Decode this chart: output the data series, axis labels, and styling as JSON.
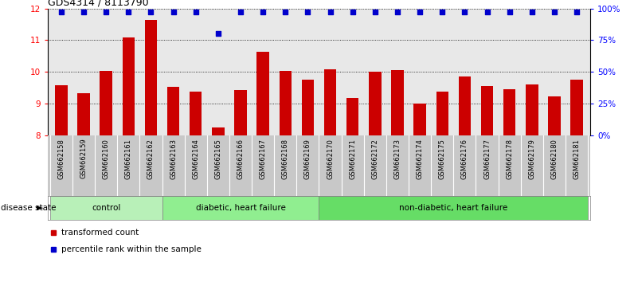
{
  "title": "GDS4314 / 8113790",
  "samples": [
    "GSM662158",
    "GSM662159",
    "GSM662160",
    "GSM662161",
    "GSM662162",
    "GSM662163",
    "GSM662164",
    "GSM662165",
    "GSM662166",
    "GSM662167",
    "GSM662168",
    "GSM662169",
    "GSM662170",
    "GSM662171",
    "GSM662172",
    "GSM662173",
    "GSM662174",
    "GSM662175",
    "GSM662176",
    "GSM662177",
    "GSM662178",
    "GSM662179",
    "GSM662180",
    "GSM662181"
  ],
  "bar_values": [
    9.57,
    9.33,
    10.02,
    11.08,
    11.65,
    9.52,
    9.38,
    8.25,
    9.43,
    10.63,
    10.02,
    9.75,
    10.08,
    9.17,
    10.0,
    10.05,
    9.0,
    9.38,
    9.85,
    9.55,
    9.45,
    9.6,
    9.22,
    9.75
  ],
  "percentile_values": [
    97,
    97,
    97,
    97,
    97,
    97,
    97,
    80,
    97,
    97,
    97,
    97,
    97,
    97,
    97,
    97,
    97,
    97,
    97,
    97,
    97,
    97,
    97,
    97
  ],
  "bar_color": "#cc0000",
  "percentile_color": "#0000cc",
  "ylim_left": [
    8,
    12
  ],
  "ylim_right": [
    0,
    100
  ],
  "yticks_left": [
    8,
    9,
    10,
    11,
    12
  ],
  "yticks_right": [
    0,
    25,
    50,
    75,
    100
  ],
  "groups": [
    {
      "label": "control",
      "start": 0,
      "end": 5
    },
    {
      "label": "diabetic, heart failure",
      "start": 5,
      "end": 12
    },
    {
      "label": "non-diabetic, heart failure",
      "start": 12,
      "end": 24
    }
  ],
  "group_colors": [
    "#b8f0b8",
    "#90ee90",
    "#66dd66"
  ],
  "legend_items": [
    {
      "label": "transformed count",
      "color": "#cc0000"
    },
    {
      "label": "percentile rank within the sample",
      "color": "#0000cc"
    }
  ],
  "disease_state_label": "disease state",
  "background_color": "#ffffff",
  "plot_bg_color": "#e8e8e8",
  "tick_label_bg": "#c8c8c8"
}
